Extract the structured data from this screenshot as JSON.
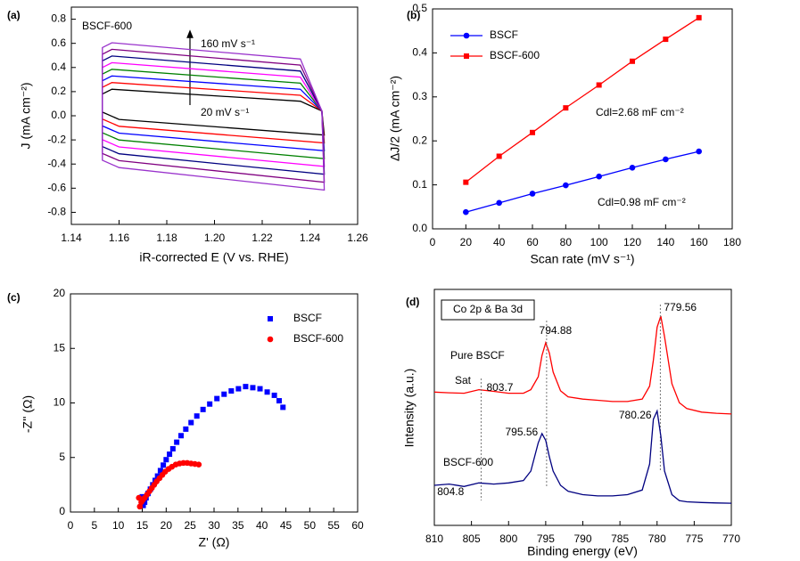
{
  "chart_data": [
    {
      "type": "line",
      "panel": "(a)",
      "closed": true,
      "xlabel": "iR-corrected E (V vs. RHE)",
      "ylabel": "J (mA cm⁻²)",
      "annotations": [
        {
          "text": "BSCF-600"
        },
        {
          "text": "160 mV s⁻¹"
        },
        {
          "text": "20 mV s⁻¹"
        }
      ],
      "xlim": [
        1.14,
        1.26
      ],
      "xticks": [
        1.14,
        1.16,
        1.18,
        {
          "value": 1.2,
          "label": "1.20"
        },
        1.22,
        1.24,
        1.26
      ],
      "ylim": [
        -0.9,
        0.9
      ],
      "yticks": [
        -0.8,
        -0.6,
        -0.4,
        -0.2,
        {
          "value": 0,
          "label": "0.0"
        },
        0.2,
        0.4,
        0.6,
        0.8
      ],
      "x": [
        1.153,
        1.157,
        1.236,
        1.245,
        1.246,
        1.16,
        1.153
      ],
      "series": [
        {
          "color": "#000000",
          "values": [
            0.18,
            0.22,
            0.12,
            0.04,
            -0.16,
            -0.03,
            0.03
          ]
        },
        {
          "color": "#ff0000",
          "values": [
            0.235,
            0.275,
            0.17,
            0.04,
            -0.225,
            -0.087,
            -0.027
          ]
        },
        {
          "color": "#0000ff",
          "values": [
            0.29,
            0.33,
            0.22,
            0.04,
            -0.29,
            -0.144,
            -0.084
          ]
        },
        {
          "color": "#008000",
          "values": [
            0.345,
            0.385,
            0.27,
            0.04,
            -0.355,
            -0.201,
            -0.141
          ]
        },
        {
          "color": "#ff00ff",
          "values": [
            0.4,
            0.44,
            0.32,
            0.04,
            -0.42,
            -0.258,
            -0.198
          ]
        },
        {
          "color": "#000080",
          "values": [
            0.455,
            0.495,
            0.37,
            0.04,
            -0.485,
            -0.315,
            -0.255
          ]
        },
        {
          "color": "#800080",
          "values": [
            0.51,
            0.55,
            0.42,
            0.04,
            -0.55,
            -0.372,
            -0.312
          ]
        },
        {
          "color": "#9932cc",
          "values": [
            0.565,
            0.605,
            0.47,
            0.04,
            -0.615,
            -0.429,
            -0.369
          ]
        }
      ]
    },
    {
      "type": "line",
      "panel": "(b)",
      "legend": "upper left",
      "xlabel": "Scan rate (mV s⁻¹)",
      "ylabel": "ΔJ/2 (mA cm⁻²)",
      "annotations": [
        {
          "text": "Cdl=2.68 mF cm⁻²",
          "color": "#ff0000"
        },
        {
          "text": "Cdl=0.98 mF cm⁻²",
          "color": "#0000ff"
        }
      ],
      "xlim": [
        0,
        180
      ],
      "xticks": [
        0,
        20,
        40,
        60,
        80,
        100,
        120,
        140,
        160,
        180
      ],
      "ylim": [
        0,
        0.5
      ],
      "yticks": [
        {
          "value": 0,
          "label": "0.0"
        },
        0.1,
        0.2,
        0.3,
        0.4,
        0.5
      ],
      "x": [
        20,
        40,
        60,
        80,
        100,
        120,
        140,
        160
      ],
      "series": [
        {
          "name": "BSCF",
          "color": "#0000ff",
          "marker": "circle",
          "values": [
            0.038,
            0.059,
            0.08,
            0.099,
            0.119,
            0.139,
            0.158,
            0.176
          ]
        },
        {
          "name": "BSCF-600",
          "color": "#ff0000",
          "marker": "square",
          "values": [
            0.106,
            0.165,
            0.219,
            0.275,
            0.327,
            0.381,
            0.431,
            0.48
          ]
        }
      ]
    },
    {
      "type": "scatter",
      "panel": "(c)",
      "legend": "upper right",
      "xlabel": "Z' (Ω)",
      "ylabel": "-Z'' (Ω)",
      "xlim": [
        0,
        60
      ],
      "xticks": [
        0,
        5,
        10,
        15,
        20,
        25,
        30,
        35,
        40,
        45,
        50,
        55,
        60
      ],
      "ylim": [
        0,
        20
      ],
      "yticks": [
        0,
        5,
        10,
        15,
        20
      ],
      "series": [
        {
          "name": "BSCF",
          "color": "#0000ff",
          "marker": "square",
          "x": [
            15.0,
            15.2,
            15.5,
            15.8,
            16.2,
            16.7,
            17.2,
            17.7,
            18.2,
            18.8,
            19.4,
            20.0,
            20.7,
            21.4,
            22.2,
            23.1,
            24.1,
            25.2,
            26.4,
            27.7,
            29.1,
            30.6,
            32.1,
            33.6,
            35.1,
            36.6,
            38.1,
            39.6,
            41.1,
            42.6,
            43.6,
            44.4
          ],
          "values": [
            1.4,
            0.6,
            0.9,
            1.3,
            1.7,
            2.1,
            2.5,
            2.9,
            3.3,
            3.8,
            4.3,
            4.8,
            5.3,
            5.8,
            6.4,
            7.0,
            7.6,
            8.2,
            8.8,
            9.4,
            9.9,
            10.4,
            10.8,
            11.1,
            11.3,
            11.5,
            11.4,
            11.3,
            11.0,
            10.7,
            10.2,
            9.6
          ]
        },
        {
          "name": "BSCF-600",
          "color": "#ff0000",
          "marker": "circle",
          "x": [
            14.3,
            14.5,
            14.8,
            15.1,
            15.5,
            16,
            16.5,
            17,
            17.5,
            18,
            18.6,
            19.2,
            19.8,
            20.5,
            21.2,
            22,
            22.8,
            23.6,
            24.4,
            25.2,
            26,
            26.8
          ],
          "values": [
            1.3,
            0.5,
            0.9,
            1.1,
            1.3,
            1.6,
            1.9,
            2.2,
            2.5,
            2.8,
            3.1,
            3.4,
            3.7,
            3.95,
            4.15,
            4.35,
            4.45,
            4.5,
            4.5,
            4.45,
            4.4,
            4.35
          ]
        }
      ]
    },
    {
      "type": "line",
      "panel": "(d)",
      "xlabel": "Binding energy (eV)",
      "ylabel": "Intensity (a.u.)",
      "annotations": [
        {
          "text": "Co 2p & Ba 3d"
        },
        {
          "text": "Sat",
          "color": "#ff0000"
        }
      ],
      "xlim": [
        810,
        770
      ],
      "xticks": [
        810,
        805,
        800,
        795,
        790,
        785,
        780,
        775,
        770
      ],
      "ylim": [
        0,
        10
      ],
      "x": [
        810,
        808,
        806,
        804,
        802,
        800,
        798,
        797,
        796,
        795.5,
        795,
        794.5,
        794,
        793,
        792,
        790,
        788,
        786,
        784,
        782,
        781,
        780.5,
        780,
        779.5,
        779,
        778,
        777,
        776,
        774,
        772,
        770
      ],
      "series": [
        {
          "name": "Pure BSCF",
          "color": "#ff0000",
          "peak_lines": true,
          "peaks": [
            {
              "value": 803.7,
              "label": "803.7"
            },
            {
              "value": 794.88,
              "label": "794.88"
            },
            {
              "value": 779.56,
              "label": "779.56"
            }
          ],
          "values": [
            5.65,
            5.62,
            5.6,
            5.75,
            5.68,
            5.6,
            5.6,
            5.75,
            6.3,
            7.2,
            7.74,
            7.3,
            6.5,
            5.7,
            5.45,
            5.35,
            5.3,
            5.25,
            5.25,
            5.35,
            5.9,
            7.0,
            8.4,
            8.87,
            8.0,
            6.0,
            5.2,
            4.95,
            4.8,
            4.75,
            4.72
          ]
        },
        {
          "name": "BSCF-600",
          "color": "#000080",
          "peaks": [
            {
              "value": 804.8,
              "label": "804.8"
            },
            {
              "value": 795.56,
              "label": "795.56"
            },
            {
              "value": 780.26,
              "label": "780.26"
            }
          ],
          "values": [
            1.7,
            1.75,
            1.65,
            1.8,
            1.75,
            1.8,
            1.9,
            2.3,
            3.5,
            3.89,
            3.6,
            2.9,
            2.3,
            1.7,
            1.45,
            1.3,
            1.25,
            1.25,
            1.3,
            1.5,
            2.6,
            4.5,
            4.85,
            3.8,
            2.3,
            1.3,
            1.05,
            1.0,
            0.97,
            0.95,
            0.94
          ]
        }
      ]
    }
  ]
}
